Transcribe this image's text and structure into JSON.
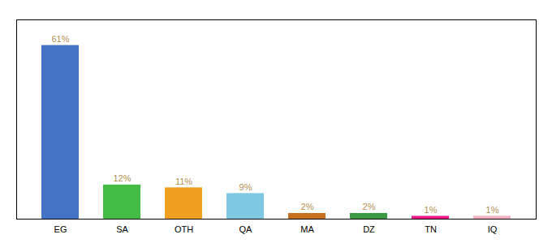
{
  "chart_data": {
    "type": "bar",
    "categories": [
      "EG",
      "SA",
      "OTH",
      "QA",
      "MA",
      "DZ",
      "TN",
      "IQ"
    ],
    "values": [
      61,
      12,
      11,
      9,
      2,
      2,
      1,
      1
    ],
    "value_labels": [
      "61%",
      "12%",
      "11%",
      "9%",
      "2%",
      "2%",
      "1%",
      "1%"
    ],
    "colors": [
      "#4472c4",
      "#44bb44",
      "#f0a020",
      "#7ec8e3",
      "#c47020",
      "#3a9a44",
      "#ee1a8c",
      "#f4b0c0"
    ],
    "ylim": [
      0,
      70
    ],
    "yticks": [],
    "grid": false,
    "data_labels": true,
    "tick_labels": "x"
  }
}
